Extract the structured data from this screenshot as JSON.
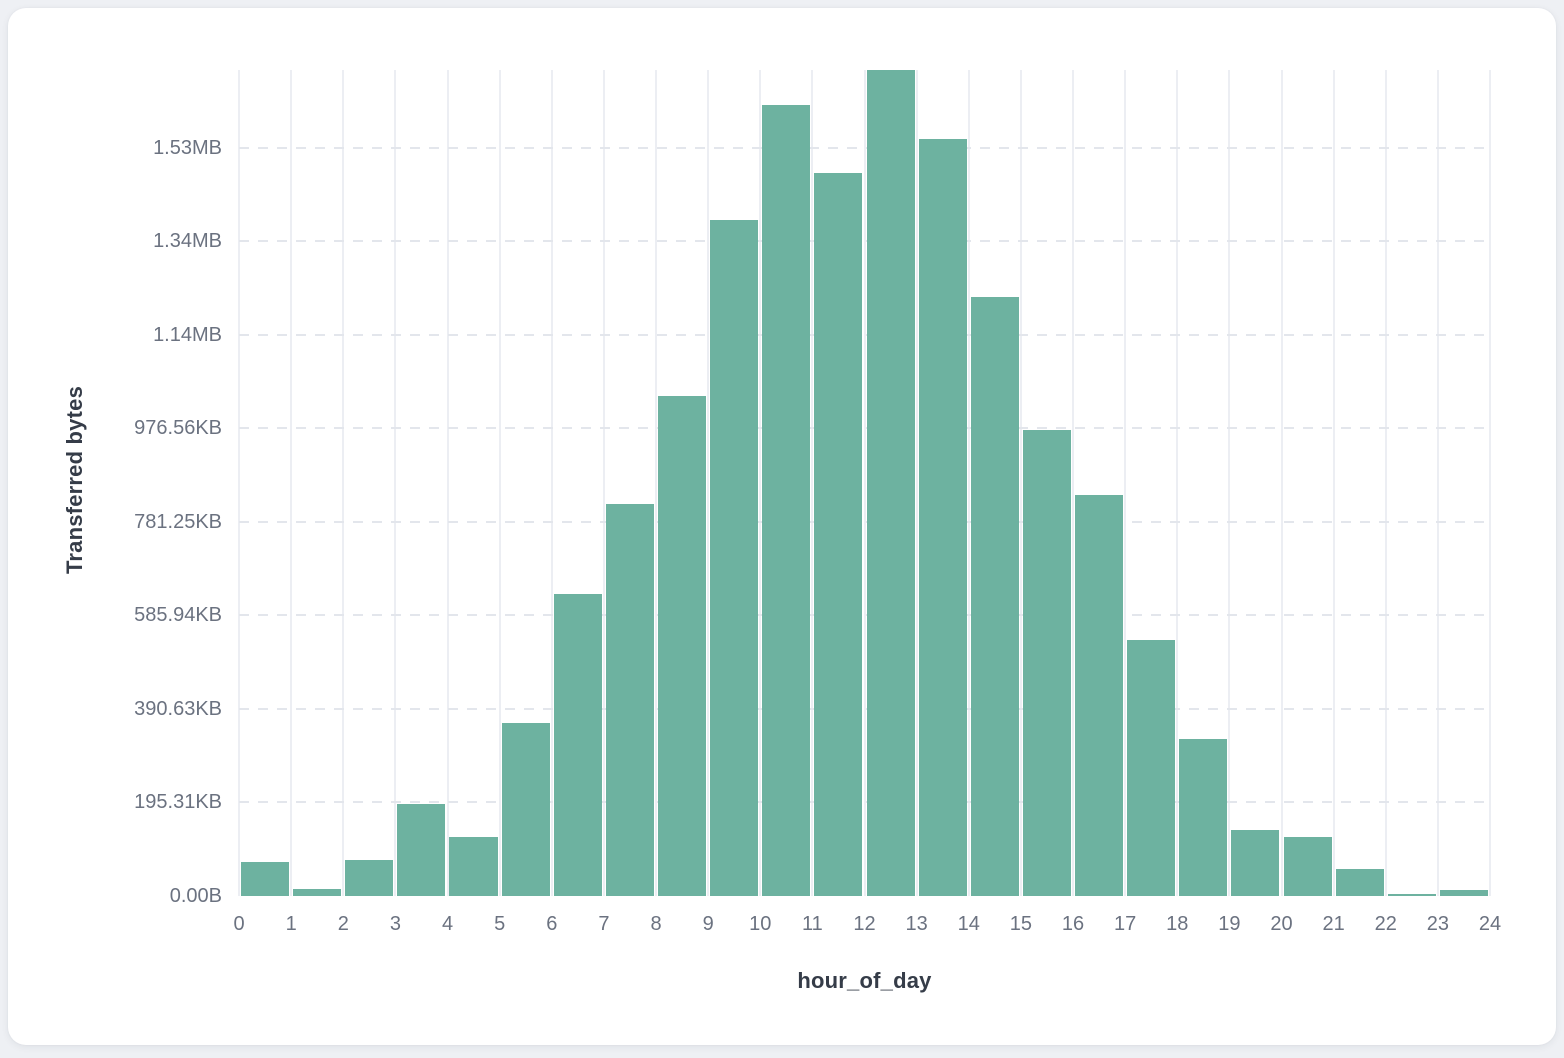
{
  "chart_data": {
    "type": "bar",
    "title": "",
    "xlabel": "hour_of_day",
    "ylabel": "Transferred bytes",
    "bar_color": "#6db2a0",
    "vertical_gridline_color": "#eceef3",
    "horizontal_gridline_color": "#e3e6ec",
    "grid": "on",
    "legend": "none",
    "x": [
      0,
      1,
      2,
      3,
      4,
      5,
      6,
      7,
      8,
      9,
      10,
      11,
      12,
      13,
      14,
      15,
      16,
      17,
      18,
      19,
      20,
      21,
      22,
      23
    ],
    "values_bytes": [
      73500,
      14400,
      77000,
      196500,
      125800,
      370000,
      645000,
      839000,
      1070000,
      1445000,
      1692000,
      1545000,
      1766000,
      1618000,
      1281000,
      997000,
      857000,
      547000,
      336000,
      141000,
      126000,
      58500,
      4300,
      12900
    ],
    "x_axis": {
      "min": 0,
      "max": 24,
      "tick_labels": [
        "0",
        "1",
        "2",
        "3",
        "4",
        "5",
        "6",
        "7",
        "8",
        "9",
        "10",
        "11",
        "12",
        "13",
        "14",
        "15",
        "16",
        "17",
        "18",
        "19",
        "20",
        "21",
        "22",
        "23",
        "24"
      ]
    },
    "y_axis": {
      "min_bytes": 0,
      "max_bytes": 1766000,
      "ticks": [
        {
          "label": "0.00B",
          "bytes": 0
        },
        {
          "label": "195.31KB",
          "bytes": 200000
        },
        {
          "label": "390.63KB",
          "bytes": 400000
        },
        {
          "label": "585.94KB",
          "bytes": 600000
        },
        {
          "label": "781.25KB",
          "bytes": 800000
        },
        {
          "label": "976.56KB",
          "bytes": 1000000
        },
        {
          "label": "1.14MB",
          "bytes": 1200000
        },
        {
          "label": "1.34MB",
          "bytes": 1400000
        },
        {
          "label": "1.53MB",
          "bytes": 1600000
        }
      ]
    }
  }
}
